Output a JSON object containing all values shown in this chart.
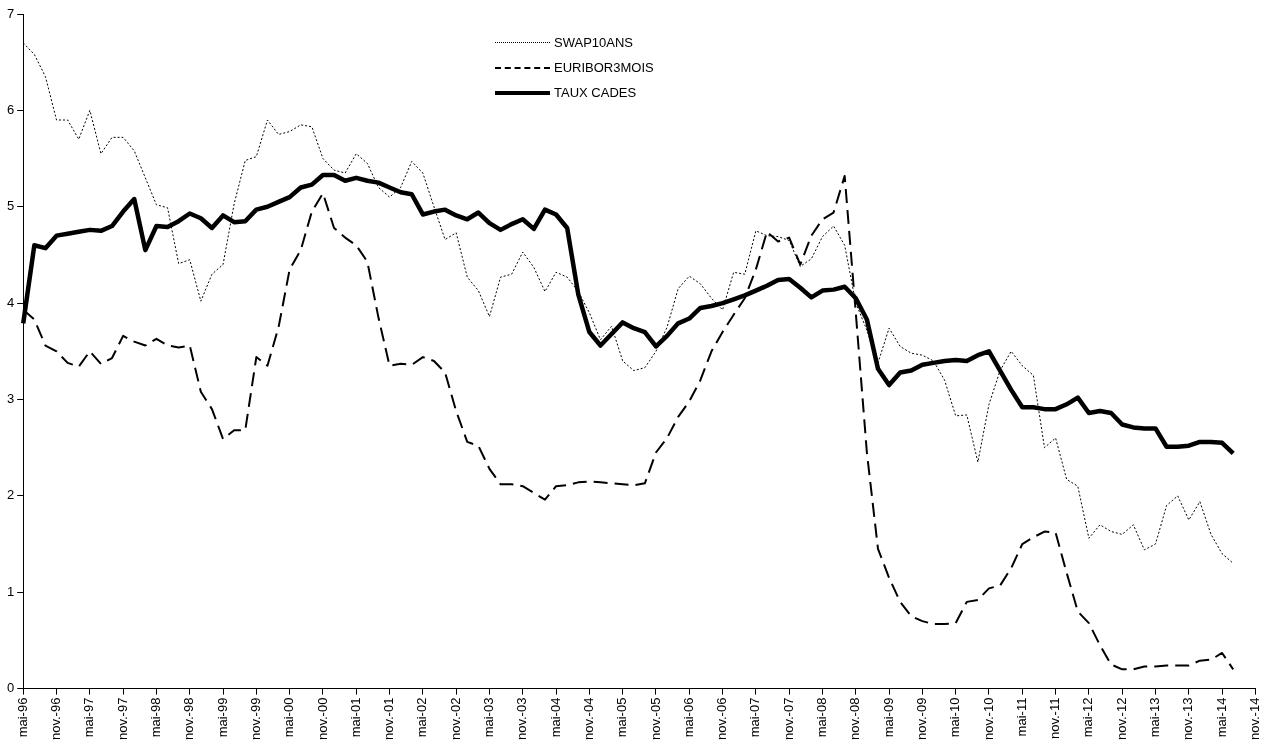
{
  "chart_data": {
    "type": "line",
    "marker": "none",
    "grid": false,
    "legend": "top",
    "ylim": [
      0,
      7
    ],
    "yticks": [
      0,
      1,
      2,
      3,
      4,
      5,
      6,
      7
    ],
    "categories": [
      "mai-96",
      null,
      null,
      "nov.-96",
      null,
      null,
      "mai-97",
      null,
      null,
      "nov.-97",
      null,
      null,
      "mai-98",
      null,
      null,
      "nov.-98",
      null,
      null,
      "mai-99",
      null,
      null,
      "nov.-99",
      null,
      null,
      "mai-00",
      null,
      null,
      "nov.-00",
      null,
      null,
      "mai-01",
      null,
      null,
      "nov.-01",
      null,
      null,
      "mai-02",
      null,
      null,
      "nov.-02",
      null,
      null,
      "mai-03",
      null,
      null,
      "nov.-03",
      null,
      null,
      "mai-04",
      null,
      null,
      "nov.-04",
      null,
      null,
      "mai-05",
      null,
      null,
      "nov.-05",
      null,
      null,
      "mai-06",
      null,
      null,
      "nov.-06",
      null,
      null,
      "mai-07",
      null,
      null,
      "nov.-07",
      null,
      null,
      "mai-08",
      null,
      null,
      "nov.-08",
      null,
      null,
      "mai-09",
      null,
      null,
      "nov.-09",
      null,
      null,
      "mai-10",
      null,
      null,
      "nov.-10",
      null,
      null,
      "mai-11",
      null,
      null,
      "nov.-11",
      null,
      null,
      "mai-12",
      null,
      null,
      "nov.-12",
      null,
      null,
      "mai-13",
      null,
      null,
      "nov.-13",
      null,
      null,
      "mai-14",
      null,
      null,
      "nov.-14"
    ],
    "series": [
      {
        "name": "SWAP10ANS",
        "color": "#000000",
        "line_style": "dotted",
        "values": [
          6.7,
          6.58,
          6.35,
          5.9,
          5.9,
          5.7,
          6.0,
          5.55,
          5.72,
          5.72,
          5.58,
          5.3,
          5.02,
          4.99,
          4.41,
          4.45,
          4.02,
          4.3,
          4.4,
          5.03,
          5.48,
          5.52,
          5.9,
          5.75,
          5.78,
          5.85,
          5.83,
          5.5,
          5.38,
          5.35,
          5.55,
          5.45,
          5.2,
          5.1,
          5.2,
          5.47,
          5.35,
          5.0,
          4.66,
          4.73,
          4.27,
          4.13,
          3.86,
          4.27,
          4.3,
          4.53,
          4.37,
          4.12,
          4.32,
          4.27,
          4.12,
          3.9,
          3.62,
          3.76,
          3.4,
          3.3,
          3.33,
          3.5,
          3.75,
          4.15,
          4.28,
          4.2,
          4.05,
          3.93,
          4.32,
          4.3,
          4.75,
          4.7,
          4.69,
          4.65,
          4.38,
          4.46,
          4.69,
          4.8,
          4.6,
          4.0,
          3.72,
          3.38,
          3.74,
          3.55,
          3.48,
          3.46,
          3.4,
          3.2,
          2.83,
          2.84,
          2.35,
          2.95,
          3.3,
          3.5,
          3.35,
          3.25,
          2.5,
          2.6,
          2.17,
          2.1,
          1.56,
          1.7,
          1.63,
          1.6,
          1.7,
          1.44,
          1.5,
          1.9,
          2.0,
          1.75,
          1.94,
          1.6,
          1.4,
          1.3,
          null,
          null
        ]
      },
      {
        "name": "EURIBOR3MOIS",
        "color": "#000000",
        "line_style": "dashed",
        "values": [
          3.93,
          3.83,
          3.56,
          3.5,
          3.38,
          3.34,
          3.5,
          3.37,
          3.43,
          3.66,
          3.6,
          3.56,
          3.63,
          3.56,
          3.54,
          3.56,
          3.08,
          2.9,
          2.59,
          2.68,
          2.68,
          3.44,
          3.35,
          3.75,
          4.35,
          4.55,
          4.95,
          5.14,
          4.78,
          4.68,
          4.6,
          4.43,
          3.85,
          3.35,
          3.37,
          3.36,
          3.44,
          3.4,
          3.28,
          2.88,
          2.56,
          2.52,
          2.28,
          2.12,
          2.12,
          2.1,
          2.03,
          1.96,
          2.1,
          2.11,
          2.14,
          2.15,
          2.14,
          2.13,
          2.12,
          2.11,
          2.13,
          2.45,
          2.6,
          2.82,
          2.98,
          3.2,
          3.5,
          3.7,
          3.88,
          4.05,
          4.35,
          4.74,
          4.64,
          4.68,
          4.4,
          4.7,
          4.87,
          4.94,
          5.32,
          3.9,
          2.45,
          1.45,
          1.15,
          0.9,
          0.75,
          0.7,
          0.67,
          0.67,
          0.68,
          0.9,
          0.92,
          1.04,
          1.07,
          1.25,
          1.5,
          1.57,
          1.63,
          1.62,
          1.2,
          0.8,
          0.68,
          0.45,
          0.25,
          0.2,
          0.2,
          0.23,
          0.23,
          0.24,
          0.24,
          0.24,
          0.29,
          0.3,
          0.37,
          0.2,
          null,
          null
        ]
      },
      {
        "name": "TAUX CADES",
        "color": "#000000",
        "line_style": "solid",
        "values": [
          3.79,
          4.6,
          4.57,
          4.7,
          4.72,
          4.74,
          4.76,
          4.75,
          4.8,
          4.95,
          5.08,
          4.55,
          4.8,
          4.79,
          4.85,
          4.93,
          4.88,
          4.78,
          4.91,
          4.84,
          4.85,
          4.97,
          5.0,
          5.05,
          5.1,
          5.2,
          5.23,
          5.33,
          5.33,
          5.27,
          5.3,
          5.27,
          5.25,
          5.2,
          5.15,
          5.13,
          4.92,
          4.95,
          4.97,
          4.91,
          4.87,
          4.94,
          4.83,
          4.76,
          4.82,
          4.87,
          4.77,
          4.97,
          4.92,
          4.78,
          4.09,
          3.7,
          3.56,
          3.68,
          3.8,
          3.74,
          3.7,
          3.55,
          3.66,
          3.79,
          3.84,
          3.95,
          3.97,
          4.0,
          4.04,
          4.08,
          4.13,
          4.18,
          4.24,
          4.25,
          4.16,
          4.06,
          4.13,
          4.14,
          4.17,
          4.05,
          3.83,
          3.32,
          3.15,
          3.28,
          3.3,
          3.36,
          3.38,
          3.4,
          3.41,
          3.4,
          3.46,
          3.5,
          3.3,
          3.1,
          2.92,
          2.92,
          2.9,
          2.9,
          2.95,
          3.02,
          2.86,
          2.88,
          2.86,
          2.74,
          2.71,
          2.7,
          2.7,
          2.51,
          2.51,
          2.52,
          2.56,
          2.56,
          2.55,
          2.44,
          null,
          null
        ]
      }
    ]
  }
}
